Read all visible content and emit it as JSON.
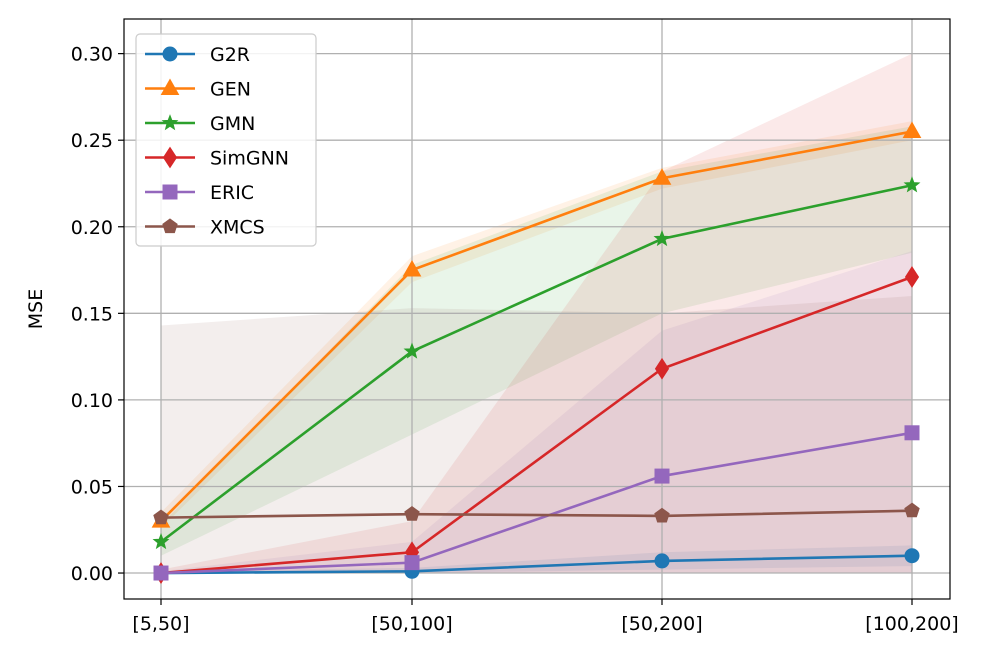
{
  "chart_data": {
    "type": "line",
    "title": "",
    "xlabel": "",
    "ylabel": "MSE",
    "categories": [
      "[5,50]",
      "[50,100]",
      "[50,200]",
      "[100,200]"
    ],
    "ylim": [
      -0.015,
      0.32
    ],
    "yticks": [
      0.0,
      0.05,
      0.1,
      0.15,
      0.2,
      0.25,
      0.3
    ],
    "ytick_labels": [
      "0.00",
      "0.05",
      "0.10",
      "0.15",
      "0.20",
      "0.25",
      "0.30"
    ],
    "grid": true,
    "legend_position": "top-left",
    "series": [
      {
        "name": "G2R",
        "color": "#1f77b4",
        "marker": "circle",
        "values": [
          0.0,
          0.001,
          0.007,
          0.01
        ],
        "band_low": [
          0.0,
          0.0,
          0.002,
          0.004
        ],
        "band_high": [
          0.001,
          0.003,
          0.012,
          0.016
        ]
      },
      {
        "name": "GEN",
        "color": "#ff7f0e",
        "marker": "triangle",
        "values": [
          0.03,
          0.175,
          0.228,
          0.255
        ],
        "band_low": [
          0.026,
          0.168,
          0.222,
          0.25
        ],
        "band_high": [
          0.035,
          0.183,
          0.234,
          0.261
        ]
      },
      {
        "name": "GMN",
        "color": "#2ca02c",
        "marker": "star",
        "values": [
          0.018,
          0.128,
          0.193,
          0.224
        ],
        "band_low": [
          0.01,
          0.08,
          0.15,
          0.185
        ],
        "band_high": [
          0.028,
          0.178,
          0.232,
          0.258
        ]
      },
      {
        "name": "SimGNN",
        "color": "#d62728",
        "marker": "diamond",
        "values": [
          0.0,
          0.012,
          0.118,
          0.171
        ],
        "band_low": [
          0.0,
          0.0,
          0.0,
          0.0
        ],
        "band_high": [
          0.002,
          0.03,
          0.232,
          0.3
        ]
      },
      {
        "name": "ERIC",
        "color": "#9467bd",
        "marker": "square",
        "values": [
          0.0,
          0.006,
          0.056,
          0.081
        ],
        "band_low": [
          0.0,
          0.0,
          0.0,
          0.0
        ],
        "band_high": [
          0.001,
          0.018,
          0.14,
          0.186
        ]
      },
      {
        "name": "XMCS",
        "color": "#8c564b",
        "marker": "pentagon",
        "values": [
          0.032,
          0.034,
          0.033,
          0.036
        ],
        "band_low": [
          0.0,
          0.0,
          0.0,
          0.0
        ],
        "band_high": [
          0.143,
          0.153,
          0.15,
          0.16
        ]
      }
    ]
  }
}
